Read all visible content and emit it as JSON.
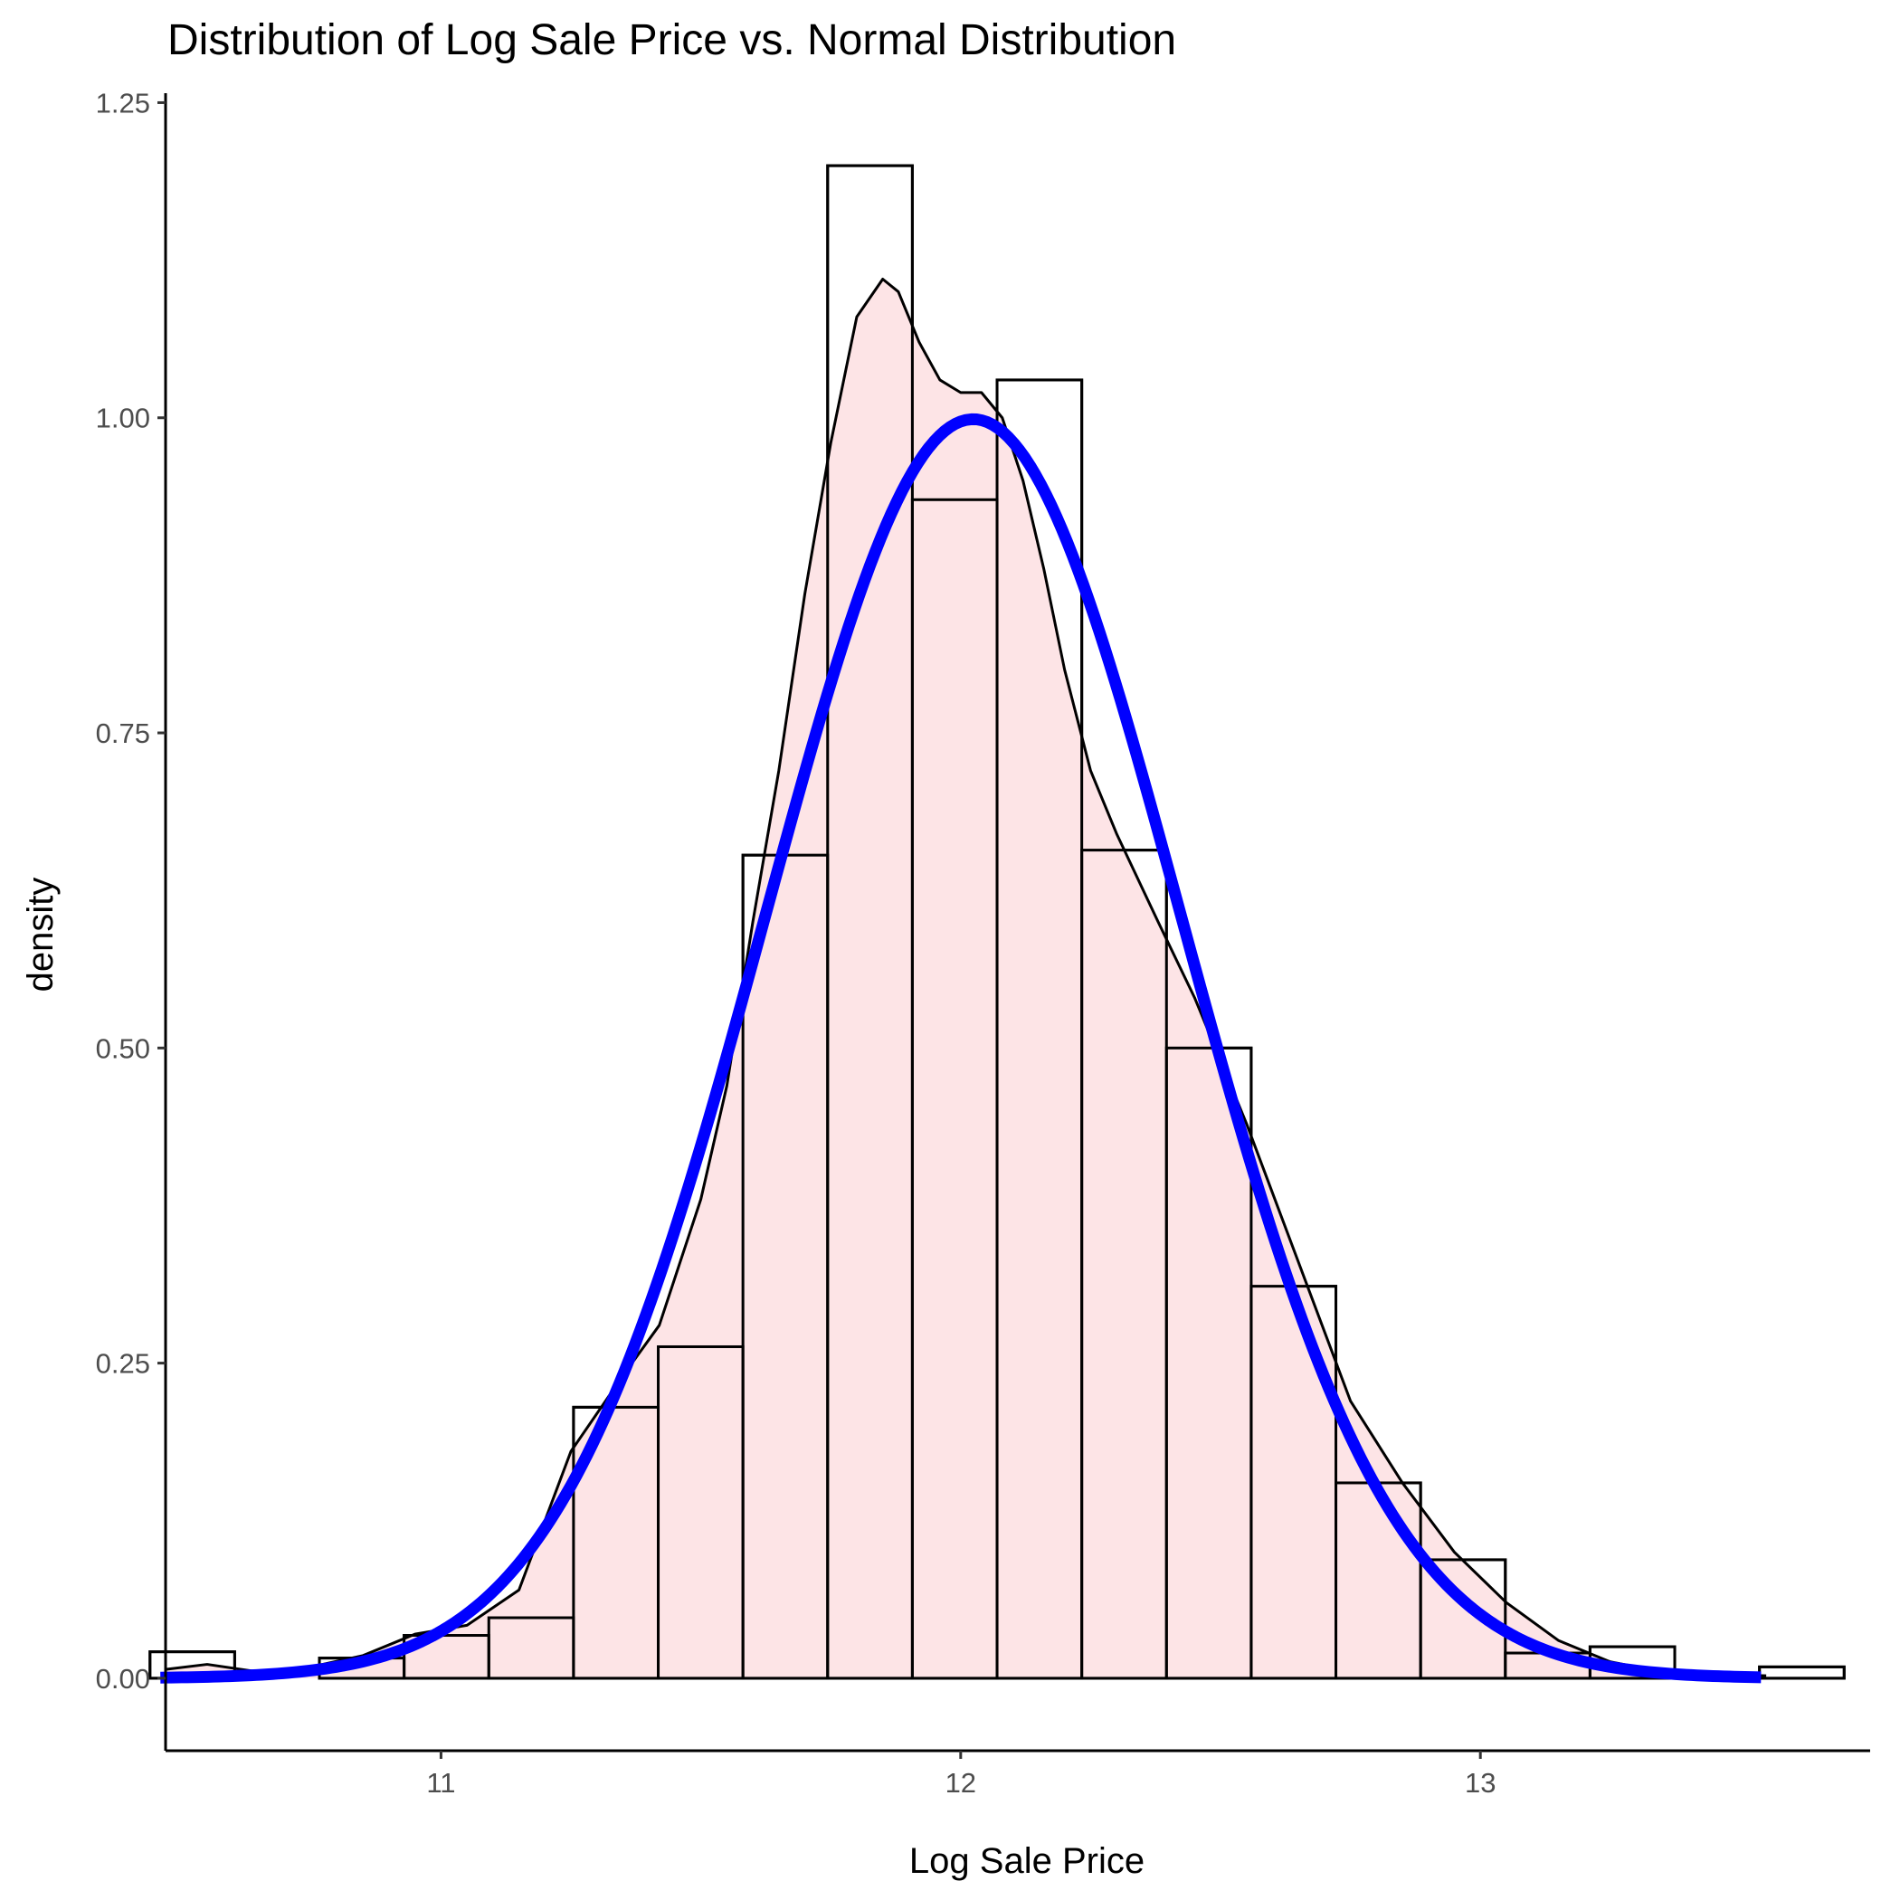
{
  "chart_data": {
    "type": "bar",
    "title": "Distribution of  Log Sale Price vs. Normal Distribution",
    "xlabel": "Log Sale Price",
    "ylabel": "density",
    "xlim": [
      10.47,
      13.75
    ],
    "ylim": [
      -0.0575,
      1.2575
    ],
    "x_ticks": [
      11,
      12,
      13
    ],
    "y_ticks": [
      0.0,
      0.25,
      0.5,
      0.75,
      1.0,
      1.25
    ],
    "x_tick_labels": [
      "11",
      "12",
      "13"
    ],
    "y_tick_labels": [
      "0.00",
      "0.25",
      "0.50",
      "0.75",
      "1.00",
      "1.25"
    ],
    "grid": false,
    "legend": "none",
    "colors": {
      "bar_fill": "#FFFFFF",
      "bar_stroke": "#000000",
      "density_fill": "#FDE0E2",
      "density_stroke": "#000000",
      "normal_curve": "#0000FF"
    },
    "series": [
      {
        "type": "histogram",
        "bin_edges": [
          10.44,
          10.603,
          10.766,
          10.929,
          11.092,
          11.255,
          11.418,
          11.581,
          11.744,
          11.907,
          12.07,
          12.233,
          12.396,
          12.559,
          12.722,
          12.885,
          13.048,
          13.211,
          13.374,
          13.537,
          13.7
        ],
        "values": [
          0.021,
          0.0,
          0.016,
          0.034,
          0.048,
          0.215,
          0.263,
          0.653,
          1.2,
          0.935,
          1.03,
          0.657,
          0.5,
          0.311,
          0.155,
          0.094,
          0.02,
          0.025,
          0.0,
          0.009
        ]
      },
      {
        "type": "kde",
        "x": [
          10.47,
          10.55,
          10.65,
          10.75,
          10.85,
          10.95,
          11.05,
          11.15,
          11.25,
          11.35,
          11.42,
          11.5,
          11.55,
          11.6,
          11.65,
          11.7,
          11.75,
          11.8,
          11.85,
          11.88,
          11.92,
          11.96,
          12.0,
          12.04,
          12.08,
          12.12,
          12.16,
          12.2,
          12.25,
          12.3,
          12.38,
          12.45,
          12.55,
          12.65,
          12.75,
          12.85,
          12.95,
          13.05,
          13.15,
          13.25,
          13.35,
          13.45,
          13.55
        ],
        "y": [
          0.007,
          0.011,
          0.005,
          0.009,
          0.018,
          0.035,
          0.042,
          0.07,
          0.18,
          0.24,
          0.28,
          0.38,
          0.47,
          0.6,
          0.72,
          0.86,
          0.98,
          1.08,
          1.11,
          1.1,
          1.06,
          1.03,
          1.02,
          1.02,
          1.0,
          0.95,
          0.88,
          0.8,
          0.72,
          0.67,
          0.6,
          0.54,
          0.44,
          0.33,
          0.22,
          0.155,
          0.1,
          0.06,
          0.03,
          0.013,
          0.005,
          0.003,
          0.002
        ]
      },
      {
        "type": "normal",
        "mean": 12.024,
        "sd": 0.3994,
        "x_range": [
          10.46,
          13.54
        ]
      }
    ]
  }
}
